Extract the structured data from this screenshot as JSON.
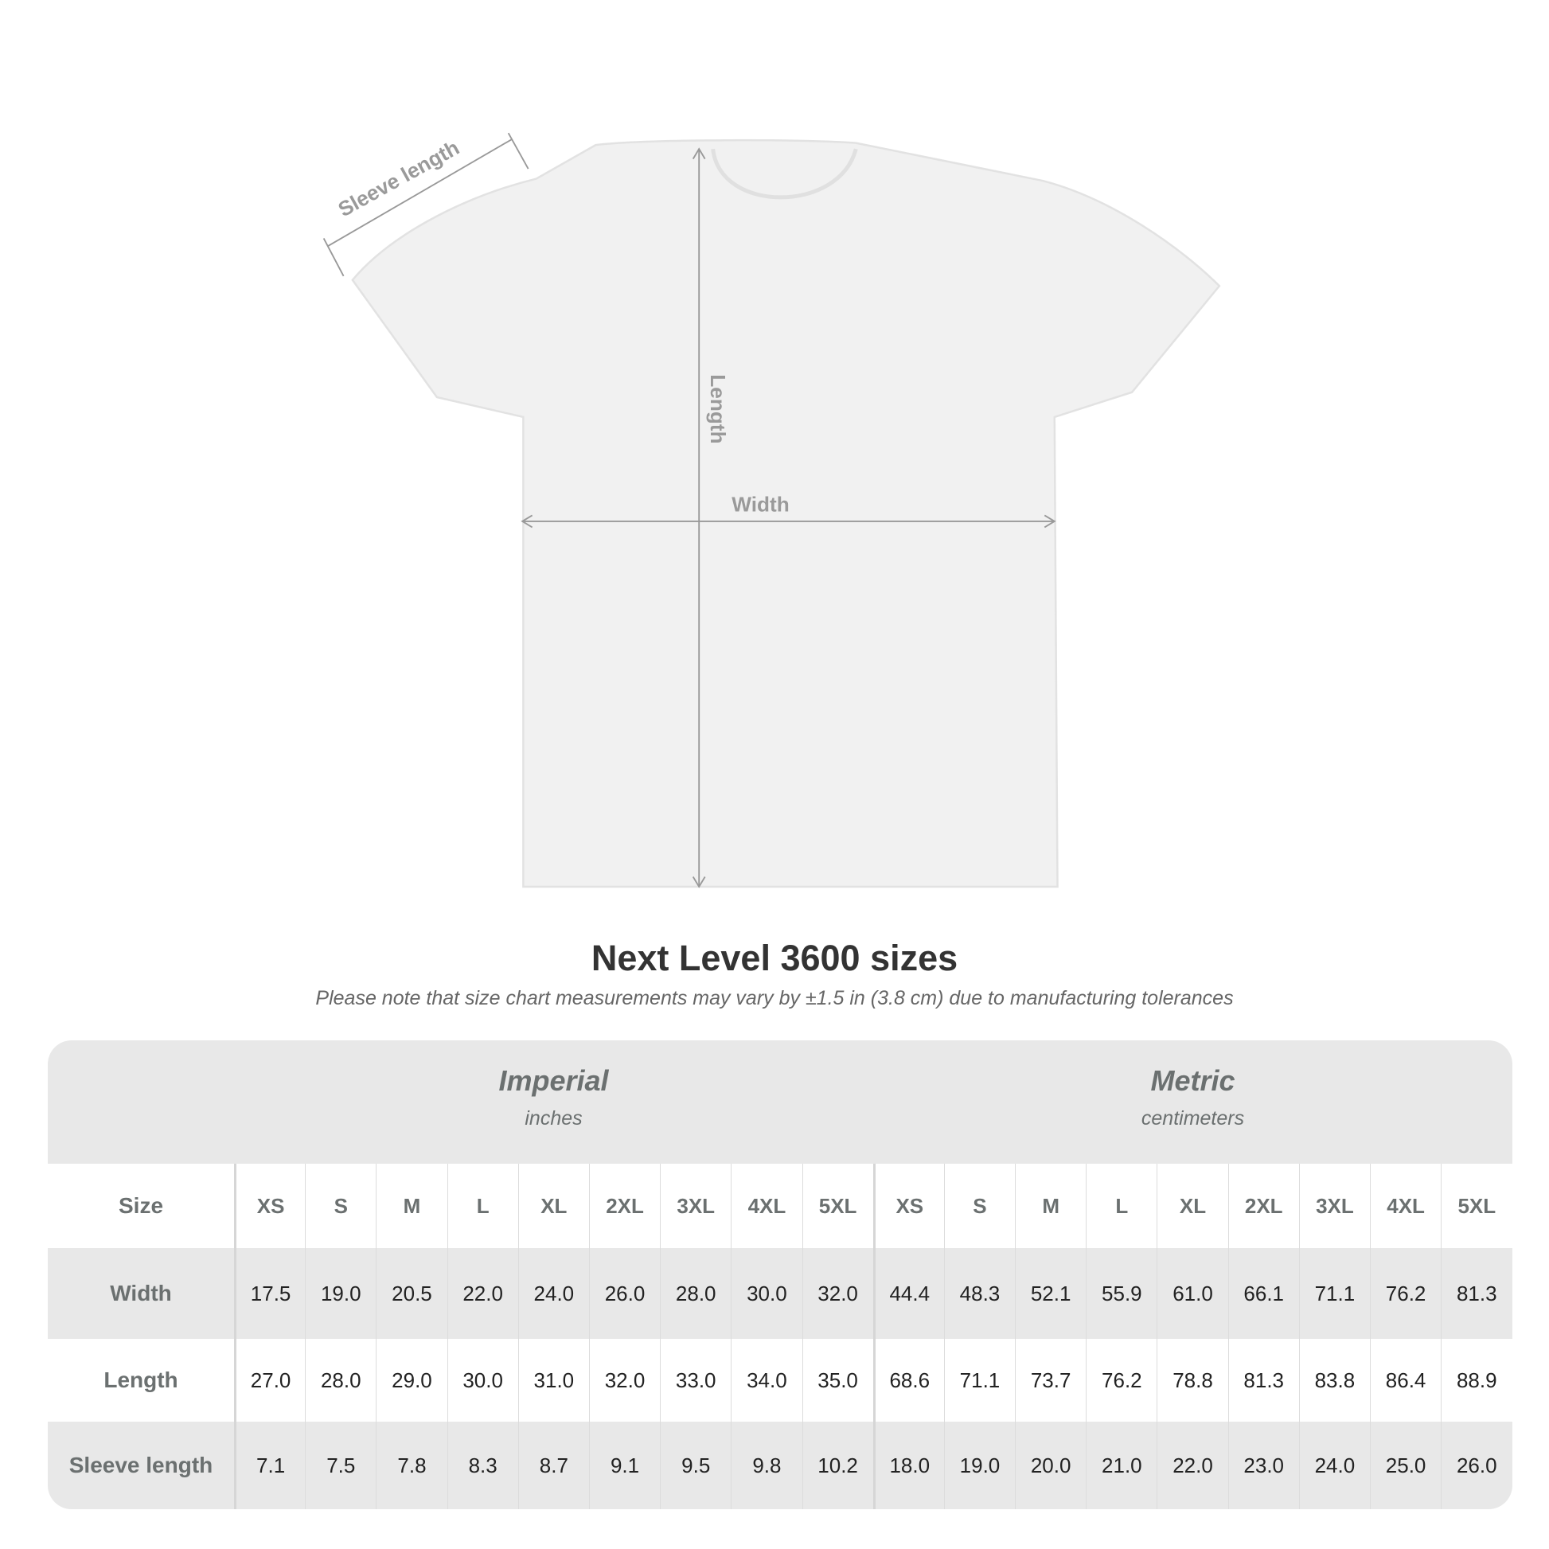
{
  "diagram": {
    "sleeve_label": "Sleeve length",
    "length_label": "Length",
    "width_label": "Width"
  },
  "title": "Next Level 3600 sizes",
  "subtitle": "Please note that size chart measurements may vary by ±1.5 in (3.8 cm) due to manufacturing tolerances",
  "table": {
    "imperial": {
      "label": "Imperial",
      "unit": "inches"
    },
    "metric": {
      "label": "Metric",
      "unit": "centimeters"
    },
    "size_label": "Size",
    "sizes": [
      "XS",
      "S",
      "M",
      "L",
      "XL",
      "2XL",
      "3XL",
      "4XL",
      "5XL"
    ],
    "rows": [
      {
        "label": "Width",
        "imperial": [
          "17.5",
          "19.0",
          "20.5",
          "22.0",
          "24.0",
          "26.0",
          "28.0",
          "30.0",
          "32.0"
        ],
        "metric": [
          "44.4",
          "48.3",
          "52.1",
          "55.9",
          "61.0",
          "66.1",
          "71.1",
          "76.2",
          "81.3"
        ]
      },
      {
        "label": "Length",
        "imperial": [
          "27.0",
          "28.0",
          "29.0",
          "30.0",
          "31.0",
          "32.0",
          "33.0",
          "34.0",
          "35.0"
        ],
        "metric": [
          "68.6",
          "71.1",
          "73.7",
          "76.2",
          "78.8",
          "81.3",
          "83.8",
          "86.4",
          "88.9"
        ]
      },
      {
        "label": "Sleeve length",
        "imperial": [
          "7.1",
          "7.5",
          "7.8",
          "8.3",
          "8.7",
          "9.1",
          "9.5",
          "9.8",
          "10.2"
        ],
        "metric": [
          "18.0",
          "19.0",
          "20.0",
          "21.0",
          "22.0",
          "23.0",
          "24.0",
          "25.0",
          "26.0"
        ]
      }
    ]
  }
}
